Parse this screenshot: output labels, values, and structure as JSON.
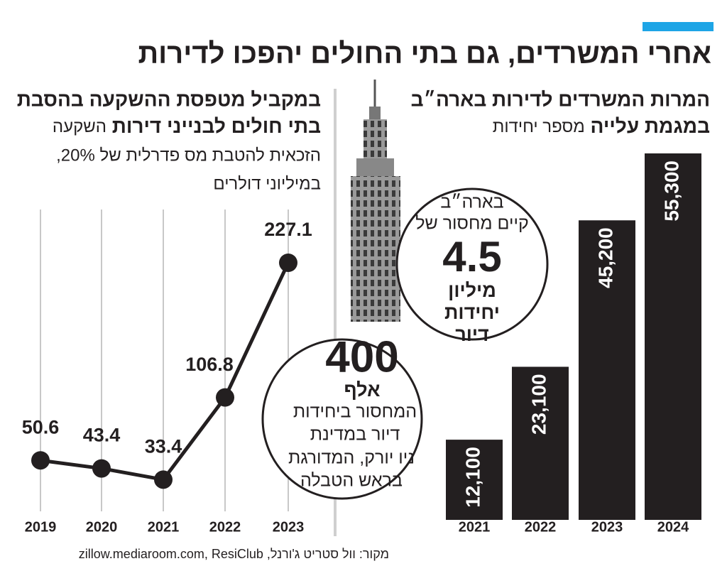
{
  "title": "אחרי המשרדים, גם בתי החולים יהפכו לדירות",
  "source": "מקור: וול סטריט ג'ורנל, zillow.mediaroom.com, ResiClub",
  "annotations": [
    {
      "lines": [
        "בארה״ב",
        "קיים מחסור של",
        "4.5",
        "מיליון",
        "יחידות",
        "דיור"
      ]
    },
    {
      "lines": [
        "400",
        "אלף",
        "המחסור ביחידות",
        "דיור במדינת",
        "ניו יורק, המדורגת",
        "בראש הטבלה"
      ]
    }
  ],
  "chart_data": [
    {
      "type": "bar",
      "title_lines": [
        "המרות המשרדים לדירות בארה״ב",
        "במגמת עלייה"
      ],
      "subtitle": "מספר יחידות",
      "categories": [
        "2021",
        "2022",
        "2023",
        "2024"
      ],
      "values": [
        12100,
        23100,
        45200,
        55300
      ],
      "value_labels": [
        "12,100",
        "23,100",
        "45,200",
        "55,300"
      ],
      "color": "#231f20"
    },
    {
      "type": "line",
      "title_lines": [
        "במקביל מטפסת ההשקעה בהסבת",
        "בתי חולים לבנייני דירות"
      ],
      "subtitle_lines": [
        "השקעה",
        "הזכאית להטבת מס פדרלית של 20%,",
        "במיליוני דולרים"
      ],
      "categories": [
        "2019",
        "2020",
        "2021",
        "2022",
        "2023"
      ],
      "values": [
        50.6,
        43.4,
        33.4,
        106.8,
        227.1
      ],
      "color": "#231f20",
      "grid": true
    }
  ]
}
